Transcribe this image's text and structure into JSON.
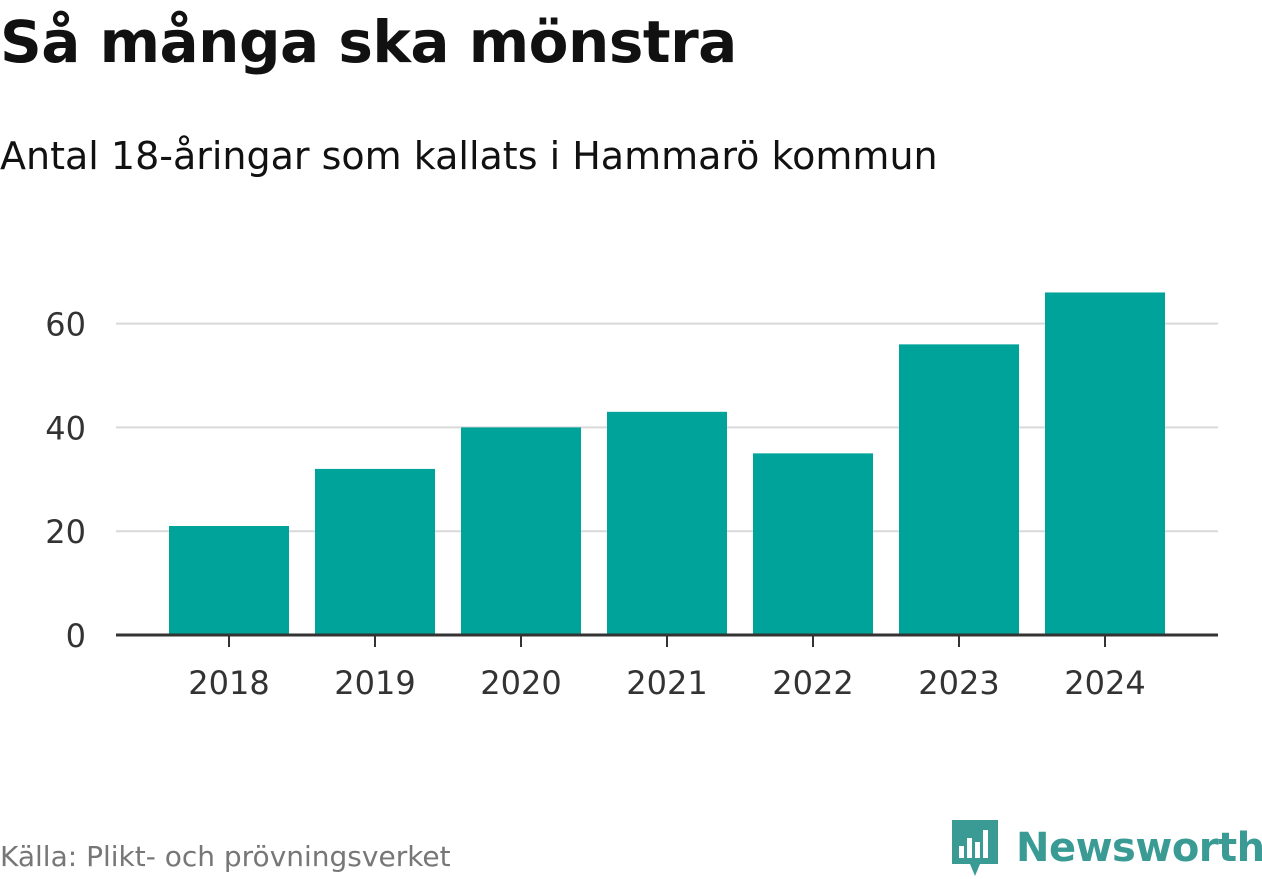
{
  "title": "Så många ska mönstra",
  "subtitle": "Antal 18-åringar som kallats i Hammarö kommun",
  "source": "Källa: Plikt- och prövningsverket",
  "brand": {
    "name": "Newsworthy",
    "icon": "newsworthy-logo-icon",
    "color": "#3a9b94"
  },
  "chart_data": {
    "type": "bar",
    "title": "Så många ska mönstra",
    "subtitle": "Antal 18-åringar som kallats i Hammarö kommun",
    "xlabel": "",
    "ylabel": "",
    "categories": [
      "2018",
      "2019",
      "2020",
      "2021",
      "2022",
      "2023",
      "2024"
    ],
    "values": [
      21,
      32,
      40,
      43,
      35,
      56,
      66
    ],
    "ylim": [
      0,
      70
    ],
    "yticks": [
      0,
      20,
      40,
      60
    ],
    "grid": true,
    "bar_color": "#00a39a"
  }
}
